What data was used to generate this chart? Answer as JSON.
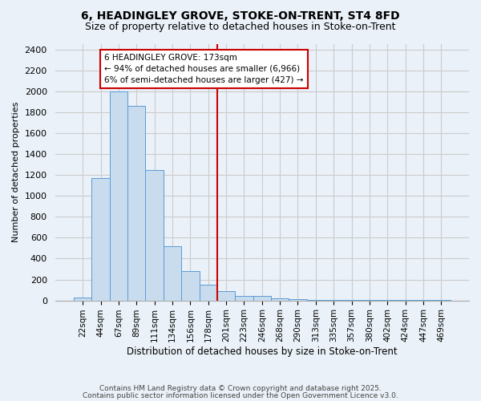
{
  "title1": "6, HEADINGLEY GROVE, STOKE-ON-TRENT, ST4 8FD",
  "title2": "Size of property relative to detached houses in Stoke-on-Trent",
  "xlabel": "Distribution of detached houses by size in Stoke-on-Trent",
  "ylabel": "Number of detached properties",
  "bar_labels": [
    "22sqm",
    "44sqm",
    "67sqm",
    "89sqm",
    "111sqm",
    "134sqm",
    "156sqm",
    "178sqm",
    "201sqm",
    "223sqm",
    "246sqm",
    "268sqm",
    "290sqm",
    "313sqm",
    "335sqm",
    "357sqm",
    "380sqm",
    "402sqm",
    "424sqm",
    "447sqm",
    "469sqm"
  ],
  "bar_values": [
    25,
    1170,
    2000,
    1860,
    1250,
    520,
    280,
    150,
    90,
    45,
    40,
    20,
    15,
    5,
    3,
    2,
    2,
    2,
    1,
    1,
    1
  ],
  "bar_color": "#c8dcee",
  "bar_edgecolor": "#5b9bd5",
  "bar_width": 1.0,
  "vline_x": 7.5,
  "vline_color": "#cc0000",
  "annotation_text": "6 HEADINGLEY GROVE: 173sqm\n← 94% of detached houses are smaller (6,966)\n6% of semi-detached houses are larger (427) →",
  "annotation_box_edgecolor": "#cc0000",
  "annotation_box_facecolor": "#ffffff",
  "ylim": [
    0,
    2450
  ],
  "yticks": [
    0,
    200,
    400,
    600,
    800,
    1000,
    1200,
    1400,
    1600,
    1800,
    2000,
    2200,
    2400
  ],
  "grid_color": "#cccccc",
  "background_color": "#eaf1f8",
  "footer1": "Contains HM Land Registry data © Crown copyright and database right 2025.",
  "footer2": "Contains public sector information licensed under the Open Government Licence v3.0."
}
